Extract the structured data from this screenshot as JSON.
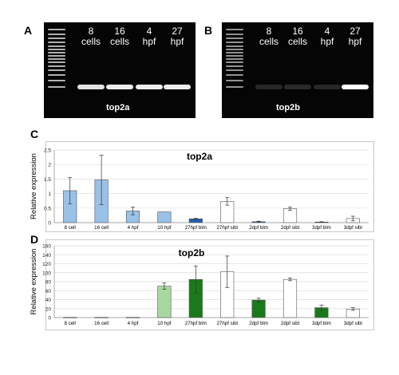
{
  "gels": [
    {
      "letter": "A",
      "lanes": [
        "8\ncells",
        "16\ncells",
        "4\nhpf",
        "27\nhpf"
      ],
      "gene": "top2a",
      "band_intensity": [
        0.85,
        0.9,
        0.9,
        0.9
      ]
    },
    {
      "letter": "B",
      "lanes": [
        "8\ncells",
        "16\ncells",
        "4\nhpf",
        "27\nhpf"
      ],
      "gene": "top2b",
      "band_intensity": [
        0.12,
        0.15,
        0.12,
        1.0
      ]
    }
  ],
  "chart_data": [
    {
      "letter": "C",
      "type": "bar",
      "title": "top2a",
      "ylabel": "Relative expression",
      "ylim": [
        0,
        2.5
      ],
      "yticks": [
        "0",
        "0.5",
        "1",
        "1.5",
        "2",
        "2.5"
      ],
      "categories": [
        "8  cell",
        "16 cell",
        "4 hpf",
        "10 hpf",
        "27hpf blm",
        "27hpf sibl",
        "2dpf blm",
        "2dpf sibl",
        "3dpf blm",
        "3dpf sibl"
      ],
      "values": [
        1.1,
        1.47,
        0.4,
        0.37,
        0.13,
        0.73,
        0.03,
        0.48,
        0.02,
        0.14
      ],
      "errors": [
        0.45,
        0.85,
        0.13,
        0.0,
        0.02,
        0.13,
        0.02,
        0.05,
        0.01,
        0.08
      ],
      "colors": [
        "#99c2e8",
        "#99c2e8",
        "#99c2e8",
        "#99c2e8",
        "#1f5fb0",
        "#ffffff",
        "#1f5fb0",
        "#ffffff",
        "#1f5fb0",
        "#ffffff"
      ]
    },
    {
      "letter": "D",
      "type": "bar",
      "title": "top2b",
      "ylabel": "Relative expression",
      "ylim": [
        0,
        160
      ],
      "yticks": [
        "0",
        "20",
        "40",
        "60",
        "80",
        "100",
        "120",
        "140",
        "160"
      ],
      "categories": [
        "8  cell",
        "16 cell",
        "4 hpf",
        "10 hpf",
        "27hpf blm",
        "27hpf sibl",
        "2dpf blm",
        "2dpf sibl",
        "3dpf blm",
        "3dpf sibl"
      ],
      "values": [
        0.5,
        0.5,
        0.5,
        70,
        85,
        102,
        39,
        85,
        22,
        19
      ],
      "errors": [
        0,
        0,
        0,
        7,
        30,
        35,
        4,
        3,
        6,
        3
      ],
      "colors": [
        "#a8d8a0",
        "#a8d8a0",
        "#a8d8a0",
        "#a8d8a0",
        "#1a7a1a",
        "#ffffff",
        "#1a7a1a",
        "#ffffff",
        "#1a7a1a",
        "#ffffff"
      ]
    }
  ]
}
